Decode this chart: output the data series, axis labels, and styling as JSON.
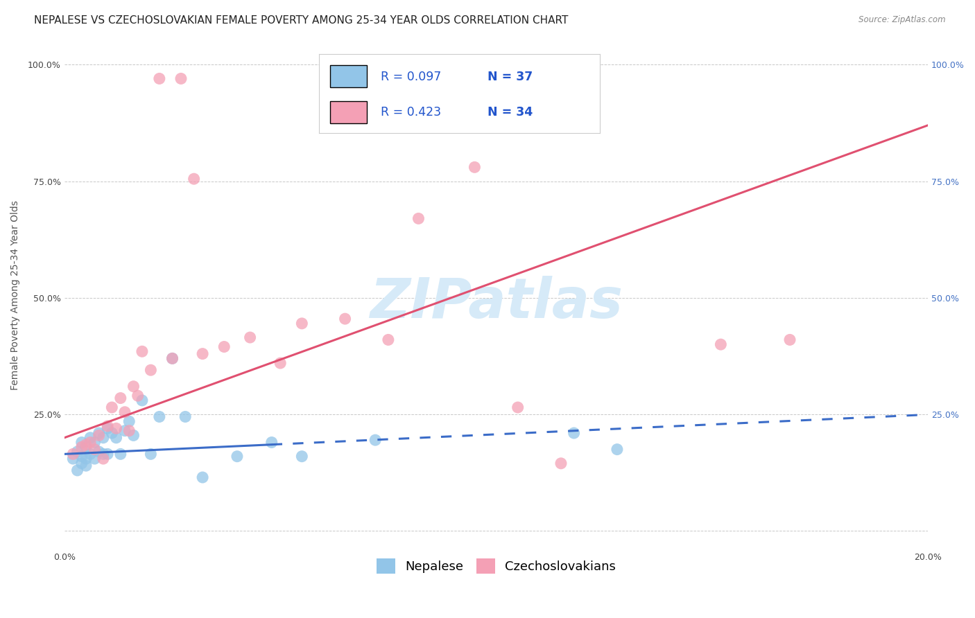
{
  "title": "NEPALESE VS CZECHOSLOVAKIAN FEMALE POVERTY AMONG 25-34 YEAR OLDS CORRELATION CHART",
  "source": "Source: ZipAtlas.com",
  "ylabel_label": "Female Poverty Among 25-34 Year Olds",
  "x_min": 0.0,
  "x_max": 0.2,
  "y_min": 0.0,
  "y_max": 1.05,
  "nepalese_color": "#92C5E8",
  "czechoslovakian_color": "#F4A0B5",
  "nepalese_line_color": "#3B6CC8",
  "czechoslovakian_line_color": "#E05070",
  "watermark_text_color": "#D6EAF8",
  "R_nepalese": 0.097,
  "N_nepalese": 37,
  "R_czechoslovakian": 0.423,
  "N_czechoslovakian": 34,
  "grid_color": "#C8C8C8",
  "background_color": "#FFFFFF",
  "title_fontsize": 11,
  "axis_label_fontsize": 10,
  "tick_fontsize": 9,
  "legend_fontsize": 13,
  "nepalese_x": [
    0.002,
    0.003,
    0.003,
    0.004,
    0.004,
    0.004,
    0.005,
    0.005,
    0.005,
    0.006,
    0.006,
    0.007,
    0.007,
    0.008,
    0.008,
    0.009,
    0.009,
    0.01,
    0.01,
    0.011,
    0.012,
    0.013,
    0.014,
    0.015,
    0.016,
    0.018,
    0.02,
    0.022,
    0.025,
    0.028,
    0.032,
    0.04,
    0.048,
    0.055,
    0.072,
    0.118,
    0.128
  ],
  "nepalese_y": [
    0.155,
    0.17,
    0.13,
    0.19,
    0.16,
    0.145,
    0.18,
    0.155,
    0.14,
    0.2,
    0.165,
    0.19,
    0.155,
    0.21,
    0.17,
    0.2,
    0.165,
    0.22,
    0.165,
    0.21,
    0.2,
    0.165,
    0.215,
    0.235,
    0.205,
    0.28,
    0.165,
    0.245,
    0.37,
    0.245,
    0.115,
    0.16,
    0.19,
    0.16,
    0.195,
    0.21,
    0.175
  ],
  "czechoslovakian_x": [
    0.002,
    0.004,
    0.005,
    0.006,
    0.007,
    0.008,
    0.009,
    0.01,
    0.011,
    0.012,
    0.013,
    0.014,
    0.015,
    0.016,
    0.017,
    0.018,
    0.02,
    0.022,
    0.025,
    0.027,
    0.03,
    0.032,
    0.037,
    0.043,
    0.05,
    0.055,
    0.065,
    0.075,
    0.082,
    0.095,
    0.105,
    0.115,
    0.152,
    0.168
  ],
  "czechoslovakian_y": [
    0.165,
    0.18,
    0.185,
    0.19,
    0.175,
    0.205,
    0.155,
    0.225,
    0.265,
    0.22,
    0.285,
    0.255,
    0.215,
    0.31,
    0.29,
    0.385,
    0.345,
    0.97,
    0.37,
    0.97,
    0.755,
    0.38,
    0.395,
    0.415,
    0.36,
    0.445,
    0.455,
    0.41,
    0.67,
    0.78,
    0.265,
    0.145,
    0.4,
    0.41
  ],
  "nepalese_slope": 0.55,
  "nepalese_intercept": 0.16,
  "czechoslovakian_slope": 3.25,
  "czechoslovakian_intercept": 0.2
}
